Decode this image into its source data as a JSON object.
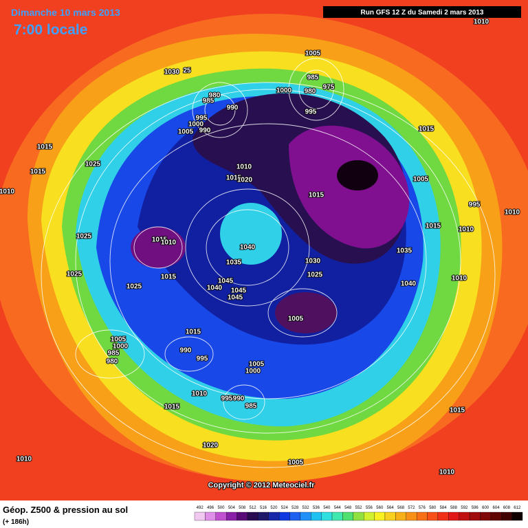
{
  "header": {
    "date": "Dimanche 10 mars 2013",
    "time": "7:00 locale",
    "run": "Run GFS 12 Z du Samedi 2 mars 2013"
  },
  "copyright": "Copyright © 2012 Meteociel.fr",
  "footer": {
    "title": "Géop. Z500 & pression au sol",
    "lead": "(+ 186h)"
  },
  "legend": {
    "values": [
      492,
      496,
      500,
      504,
      508,
      512,
      516,
      520,
      524,
      528,
      532,
      536,
      540,
      544,
      548,
      552,
      556,
      560,
      564,
      568,
      572,
      576,
      580,
      584,
      588,
      592,
      596,
      600,
      604,
      608,
      612
    ],
    "colors": [
      "#f0c8f0",
      "#e090e8",
      "#c050d0",
      "#8a20a8",
      "#5a0a78",
      "#2a0a50",
      "#201868",
      "#1828a8",
      "#1038e0",
      "#2060f0",
      "#2090f8",
      "#20c0f0",
      "#30e0e0",
      "#40e8b0",
      "#50e070",
      "#90e040",
      "#d0f030",
      "#f8f020",
      "#f8d020",
      "#f8b018",
      "#f89018",
      "#f87018",
      "#f85018",
      "#f03018",
      "#e01818",
      "#c01010",
      "#a00c0c",
      "#800808",
      "#600404",
      "#400202",
      "#100000"
    ]
  },
  "isobars": [
    1010,
    1030,
    25,
    1005,
    985,
    980,
    975,
    995,
    980,
    985,
    990,
    1000,
    995,
    1000,
    990,
    1005,
    1015,
    1015,
    1025,
    1015,
    1010,
    1010,
    1015,
    1020,
    1005,
    1015,
    995,
    1010,
    1015,
    1010,
    1025,
    1015,
    1010,
    1040,
    1035,
    1030,
    1035,
    1025,
    1025,
    1015,
    1045,
    1040,
    1045,
    1045,
    1010,
    1040,
    1025,
    1005,
    1015,
    1005,
    1000,
    985,
    990,
    995,
    980,
    1005,
    1000,
    1010,
    995,
    990,
    1015,
    1015,
    985,
    1020,
    1010,
    1005,
    1010
  ]
}
